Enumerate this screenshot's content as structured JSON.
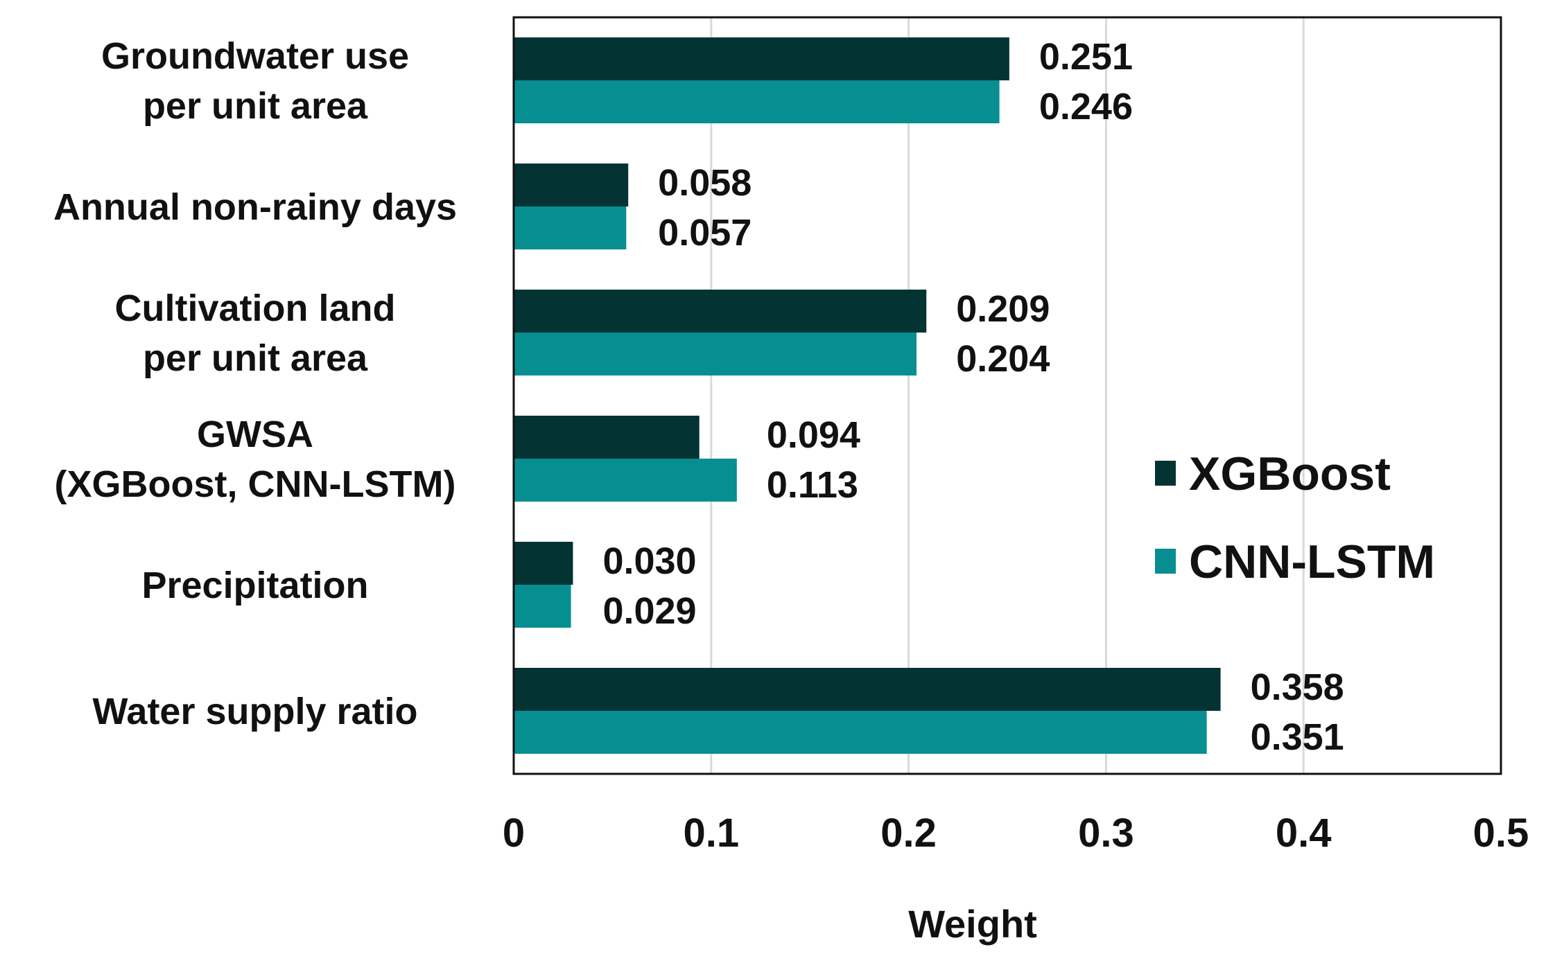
{
  "chart_data": {
    "type": "bar",
    "orientation": "horizontal",
    "title": "",
    "xlabel": "Weight",
    "ylabel": "",
    "xlim": [
      0,
      0.5
    ],
    "xticks": [
      0,
      0.1,
      0.2,
      0.3,
      0.4,
      0.5
    ],
    "xtick_labels": [
      "0",
      "0.1",
      "0.2",
      "0.3",
      "0.4",
      "0.5"
    ],
    "grid": true,
    "legend_position": "right",
    "categories": [
      [
        "Groundwater use",
        "per unit area"
      ],
      [
        "Annual non-rainy days"
      ],
      [
        "Cultivation land",
        "per unit area"
      ],
      [
        "GWSA",
        "(XGBoost, CNN-LSTM)"
      ],
      [
        "Precipitation"
      ],
      [
        "Water supply ratio"
      ]
    ],
    "series": [
      {
        "name": "XGBoost",
        "color": "#033333",
        "values": [
          0.251,
          0.058,
          0.209,
          0.094,
          0.03,
          0.358
        ],
        "labels": [
          "0.251",
          "0.058",
          "0.209",
          "0.094",
          "0.030",
          "0.358"
        ]
      },
      {
        "name": "CNN-LSTM",
        "color": "#078E91",
        "values": [
          0.246,
          0.057,
          0.204,
          0.113,
          0.029,
          0.351
        ],
        "labels": [
          "0.246",
          "0.057",
          "0.204",
          "0.113",
          "0.029",
          "0.351"
        ]
      }
    ]
  }
}
